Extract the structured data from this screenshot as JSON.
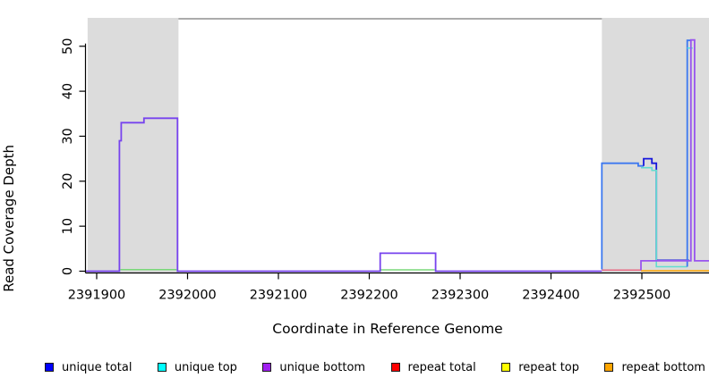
{
  "figure": {
    "xlabel": "Coordinate in Reference Genome",
    "ylabel": "Read Coverage Depth"
  },
  "legend": {
    "items": [
      {
        "label": "unique total",
        "color": "#0000FF"
      },
      {
        "label": "unique top",
        "color": "#00FFFF"
      },
      {
        "label": "unique bottom",
        "color": "#A020F0"
      },
      {
        "label": "repeat total",
        "color": "#FF0000"
      },
      {
        "label": "repeat top",
        "color": "#FFFF00"
      },
      {
        "label": "repeat bottom",
        "color": "#FFA500"
      }
    ]
  },
  "chart_data": {
    "type": "line",
    "title": "",
    "xlabel": "Coordinate in Reference Genome",
    "ylabel": "Read Coverage Depth",
    "xlim": [
      2391888,
      2392574
    ],
    "ylim": [
      0,
      56.5
    ],
    "x_ticks": [
      2391900,
      2392000,
      2392100,
      2392200,
      2392300,
      2392400,
      2392500
    ],
    "y_ticks": [
      0,
      10,
      20,
      30,
      40,
      50
    ],
    "grid": false,
    "legend_position": "bottom",
    "background_color": "#ffffff",
    "shaded_region_color": "#DCDCDC",
    "shaded_regions": [
      {
        "name": "repeat-region-left",
        "x0": 2391890,
        "x1": 2391990
      },
      {
        "name": "repeat-region-right",
        "x0": 2392456,
        "x1": 2392574
      }
    ],
    "top_line": {
      "x0": 2391990,
      "x1": 2392456,
      "y": 56.1,
      "color": "#8f8f8f"
    },
    "series": [
      {
        "name": "repeat-baseline-left-green",
        "color": "#79d879",
        "width": 1.5,
        "points": [
          [
            2391926,
            0.35
          ],
          [
            2391988,
            0.35
          ]
        ]
      },
      {
        "name": "repeat-baseline-mid-green",
        "color": "#79d879",
        "width": 1.5,
        "points": [
          [
            2392212,
            0.3
          ],
          [
            2392272,
            0.3
          ]
        ]
      },
      {
        "name": "repeat-total-baseline-red",
        "color": "#e86a84",
        "width": 1.5,
        "points": [
          [
            2392456,
            0.25
          ],
          [
            2392499,
            0.25
          ]
        ]
      },
      {
        "name": "repeat-bottom-baseline-orange",
        "color": "#FFA500",
        "width": 1.6,
        "points": [
          [
            2392499,
            0.1
          ],
          [
            2392574,
            0.1
          ]
        ]
      },
      {
        "name": "unique-line-left-violet",
        "color": "#7743ee",
        "width": 1.8,
        "points": [
          [
            2391888,
            0
          ],
          [
            2391925,
            0
          ],
          [
            2391925,
            29
          ],
          [
            2391927,
            29
          ],
          [
            2391927,
            33
          ],
          [
            2391952,
            33
          ],
          [
            2391952,
            34
          ],
          [
            2391989,
            34
          ],
          [
            2391989,
            0
          ],
          [
            2392212,
            0
          ],
          [
            2392212,
            4
          ],
          [
            2392273,
            4
          ],
          [
            2392273,
            0
          ],
          [
            2392456,
            0
          ]
        ]
      },
      {
        "name": "unique-total-right-bright",
        "color": "#3c78f0",
        "width": 1.8,
        "points": [
          [
            2392456,
            0.4
          ],
          [
            2392456,
            24
          ],
          [
            2392496,
            24
          ],
          [
            2392496,
            23.4
          ],
          [
            2392502,
            23.4
          ]
        ]
      },
      {
        "name": "unique-total-right-dark",
        "color": "#1818dc",
        "width": 1.8,
        "points": [
          [
            2392502,
            23.4
          ],
          [
            2392502,
            25
          ],
          [
            2392511,
            25
          ],
          [
            2392511,
            24
          ],
          [
            2392516,
            24
          ],
          [
            2392516,
            2.4
          ],
          [
            2392552,
            2.4
          ]
        ]
      },
      {
        "name": "unique-top-right-cyan",
        "color": "#62dcd0",
        "width": 1.6,
        "points": [
          [
            2392499,
            23
          ],
          [
            2392511,
            23
          ],
          [
            2392511,
            22.4
          ],
          [
            2392516,
            22.4
          ],
          [
            2392516,
            1
          ],
          [
            2392550,
            1
          ]
        ]
      },
      {
        "name": "unique-total-spike-bright",
        "color": "#3c78f0",
        "width": 1.8,
        "points": [
          [
            2392550,
            1
          ],
          [
            2392550,
            51.3
          ],
          [
            2392554,
            51.3
          ]
        ]
      },
      {
        "name": "unique-top-spike-cap-cyan",
        "color": "#55e0e0",
        "width": 1.6,
        "points": [
          [
            2392550,
            49.6
          ],
          [
            2392556,
            49.6
          ]
        ]
      },
      {
        "name": "unique-bottom-right-purple",
        "color": "#9955ee",
        "width": 1.8,
        "points": [
          [
            2392499,
            0.2
          ],
          [
            2392499,
            2.3
          ],
          [
            2392554,
            2.3
          ],
          [
            2392554,
            51.4
          ],
          [
            2392558,
            51.4
          ],
          [
            2392558,
            2.3
          ],
          [
            2392574,
            2.3
          ]
        ]
      }
    ]
  }
}
